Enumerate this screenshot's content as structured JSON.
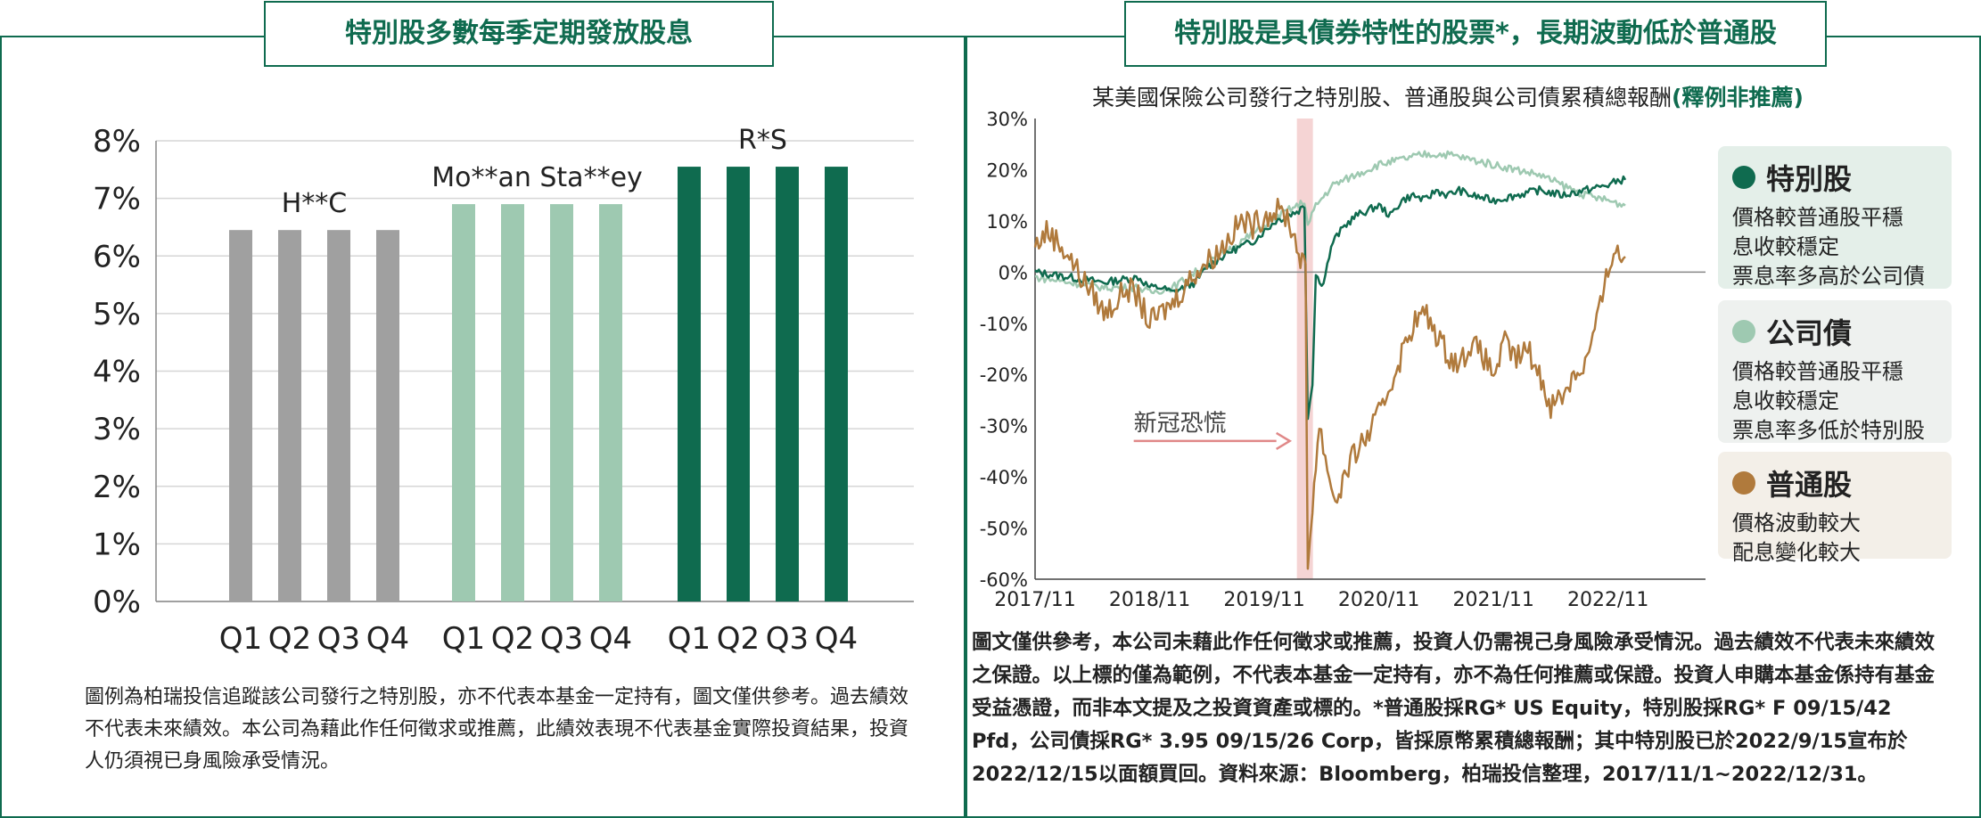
{
  "left_panel": {
    "title": "特別股多數每季定期發放股息",
    "note": "圖例為柏瑞投信追蹤該公司發行之特別股，亦不代表本基金一定持有，圖文僅供參考。過去績效不代表未來績效。本公司為藉此作任何徵求或推薦，此績效表現不代表基金實際投資結果，投資人仍須視已身風險承受情況。"
  },
  "right_panel": {
    "title": "特別股是具債券特性的股票*，長期波動低於普通股",
    "subtitle": "某美國保險公司發行之特別股、普通股與公司債累積總報酬",
    "subtitle_emph": "(釋例非推薦)",
    "note": "圖文僅供參考，本公司未藉此作任何徵求或推薦，投資人仍需視己身風險承受情況。過去績效不代表未來績效之保證。以上標的僅為範例，不代表本基金一定持有，亦不為任何推薦或保證。投資人申購本基金係持有基金受益憑證，而非本文提及之投資資產或標的。*普通股採RG* US Equity，特別股採RG* F 09/15/42 Pfd，公司債採RG* 3.95 09/15/26 Corp，皆採原幣累積總報酬；其中特別股已於2022/9/15宣布於2022/12/15以面額買回。資料來源：Bloomberg，柏瑞投信整理，2017/11/1~2022/12/31。",
    "legend": [
      {
        "name": "特別股",
        "color": "#0f6b4f",
        "desc": [
          "價格較普通股平穩",
          "息收較穩定",
          "票息率多高於公司債"
        ],
        "bg": "#e4efe9"
      },
      {
        "name": "公司債",
        "color": "#9ec9b1",
        "desc": [
          "價格較普通股平穩",
          "息收較穩定",
          "票息率多低於特別股"
        ],
        "bg": "#eef1ef"
      },
      {
        "name": "普通股",
        "color": "#b07a3c",
        "desc": [
          "價格波動較大",
          "配息變化較大"
        ],
        "bg": "#f3efe8"
      }
    ]
  },
  "chart_data": [
    {
      "type": "bar",
      "title": "",
      "ylim": [
        0,
        8
      ],
      "yticks": [
        "0%",
        "1%",
        "2%",
        "3%",
        "4%",
        "5%",
        "6%",
        "7%",
        "8%"
      ],
      "grid": true,
      "groups": [
        {
          "name": "H**C",
          "color": "#a0a0a0",
          "categories": [
            "Q1",
            "Q2",
            "Q3",
            "Q4"
          ],
          "values": [
            6.45,
            6.45,
            6.45,
            6.45
          ]
        },
        {
          "name": "Mo**an Sta**ey",
          "color": "#9ec9b1",
          "categories": [
            "Q1",
            "Q2",
            "Q3",
            "Q4"
          ],
          "values": [
            6.9,
            6.9,
            6.9,
            6.9
          ]
        },
        {
          "name": "R*S",
          "color": "#0f6b4f",
          "categories": [
            "Q1",
            "Q2",
            "Q3",
            "Q4"
          ],
          "values": [
            7.55,
            7.55,
            7.55,
            7.55
          ]
        }
      ]
    },
    {
      "type": "line",
      "title": "某美國保險公司發行之特別股、普通股與公司債累積總報酬(釋例非推薦)",
      "x_ticks": [
        "2017/11",
        "2018/11",
        "2019/11",
        "2020/11",
        "2021/11",
        "2022/11"
      ],
      "ylim": [
        -60,
        30
      ],
      "yticks": [
        "30%",
        "20%",
        "10%",
        "0%",
        "-10%",
        "-20%",
        "-30%",
        "-40%",
        "-50%",
        "-60%"
      ],
      "annotation": "新冠恐慌",
      "annotation_x": 2.3,
      "x_unit_note": "x in years since 2017/11",
      "series": [
        {
          "name": "特別股",
          "color": "#0f6b4f",
          "points": [
            [
              0,
              0
            ],
            [
              0.3,
              -1
            ],
            [
              0.6,
              -2
            ],
            [
              0.9,
              -1
            ],
            [
              1.0,
              -3
            ],
            [
              1.1,
              -3
            ],
            [
              1.2,
              -4
            ],
            [
              1.3,
              -3
            ],
            [
              1.4,
              -2
            ],
            [
              1.5,
              1
            ],
            [
              1.7,
              4
            ],
            [
              1.9,
              6
            ],
            [
              2.0,
              8
            ],
            [
              2.1,
              10
            ],
            [
              2.2,
              11
            ],
            [
              2.3,
              12
            ],
            [
              2.35,
              13
            ],
            [
              2.38,
              -28
            ],
            [
              2.42,
              -22
            ],
            [
              2.45,
              0
            ],
            [
              2.5,
              -3
            ],
            [
              2.6,
              6
            ],
            [
              2.7,
              9
            ],
            [
              2.8,
              11
            ],
            [
              2.9,
              12
            ],
            [
              3.0,
              13
            ],
            [
              3.1,
              11
            ],
            [
              3.2,
              14
            ],
            [
              3.3,
              15
            ],
            [
              3.4,
              14
            ],
            [
              3.5,
              16
            ],
            [
              3.6,
              15
            ],
            [
              3.7,
              16
            ],
            [
              3.8,
              15
            ],
            [
              4.0,
              14
            ],
            [
              4.2,
              15
            ],
            [
              4.4,
              16
            ],
            [
              4.6,
              15
            ],
            [
              4.8,
              16
            ],
            [
              5.0,
              17
            ],
            [
              5.1,
              18
            ],
            [
              5.15,
              18
            ]
          ]
        },
        {
          "name": "公司債",
          "color": "#9ec9b1",
          "points": [
            [
              0,
              -1
            ],
            [
              0.3,
              -2
            ],
            [
              0.6,
              -3
            ],
            [
              0.9,
              -3
            ],
            [
              1.0,
              -4
            ],
            [
              1.2,
              -3
            ],
            [
              1.4,
              0
            ],
            [
              1.6,
              3
            ],
            [
              1.8,
              6
            ],
            [
              2.0,
              9
            ],
            [
              2.2,
              12
            ],
            [
              2.3,
              13
            ],
            [
              2.35,
              14
            ],
            [
              2.38,
              9
            ],
            [
              2.45,
              13
            ],
            [
              2.6,
              17
            ],
            [
              2.8,
              19
            ],
            [
              3.0,
              21
            ],
            [
              3.2,
              22
            ],
            [
              3.4,
              23
            ],
            [
              3.6,
              23
            ],
            [
              3.8,
              22
            ],
            [
              4.0,
              21
            ],
            [
              4.2,
              20
            ],
            [
              4.4,
              19
            ],
            [
              4.6,
              17
            ],
            [
              4.8,
              15
            ],
            [
              5.0,
              14
            ],
            [
              5.15,
              13
            ]
          ]
        },
        {
          "name": "普通股",
          "color": "#b07a3c",
          "points": [
            [
              0,
              5
            ],
            [
              0.1,
              8
            ],
            [
              0.2,
              6
            ],
            [
              0.3,
              3
            ],
            [
              0.4,
              -1
            ],
            [
              0.5,
              -4
            ],
            [
              0.6,
              -8
            ],
            [
              0.7,
              -6
            ],
            [
              0.8,
              -3
            ],
            [
              0.9,
              -5
            ],
            [
              1.0,
              -10
            ],
            [
              1.1,
              -8
            ],
            [
              1.2,
              -6
            ],
            [
              1.3,
              -3
            ],
            [
              1.4,
              0
            ],
            [
              1.6,
              4
            ],
            [
              1.7,
              7
            ],
            [
              1.8,
              10
            ],
            [
              1.9,
              9
            ],
            [
              2.0,
              11
            ],
            [
              2.1,
              12
            ],
            [
              2.2,
              11
            ],
            [
              2.3,
              4
            ],
            [
              2.36,
              0
            ],
            [
              2.38,
              -58
            ],
            [
              2.42,
              -45
            ],
            [
              2.48,
              -30
            ],
            [
              2.55,
              -38
            ],
            [
              2.62,
              -45
            ],
            [
              2.7,
              -40
            ],
            [
              2.8,
              -35
            ],
            [
              2.9,
              -32
            ],
            [
              3.0,
              -28
            ],
            [
              3.1,
              -22
            ],
            [
              3.2,
              -16
            ],
            [
              3.3,
              -10
            ],
            [
              3.4,
              -8
            ],
            [
              3.5,
              -12
            ],
            [
              3.6,
              -16
            ],
            [
              3.7,
              -18
            ],
            [
              3.8,
              -14
            ],
            [
              3.9,
              -16
            ],
            [
              4.0,
              -20
            ],
            [
              4.1,
              -14
            ],
            [
              4.2,
              -17
            ],
            [
              4.3,
              -15
            ],
            [
              4.4,
              -20
            ],
            [
              4.5,
              -26
            ],
            [
              4.6,
              -24
            ],
            [
              4.7,
              -20
            ],
            [
              4.8,
              -18
            ],
            [
              4.9,
              -10
            ],
            [
              5.0,
              0
            ],
            [
              5.05,
              5
            ],
            [
              5.1,
              3
            ],
            [
              5.15,
              3
            ]
          ]
        }
      ]
    }
  ]
}
